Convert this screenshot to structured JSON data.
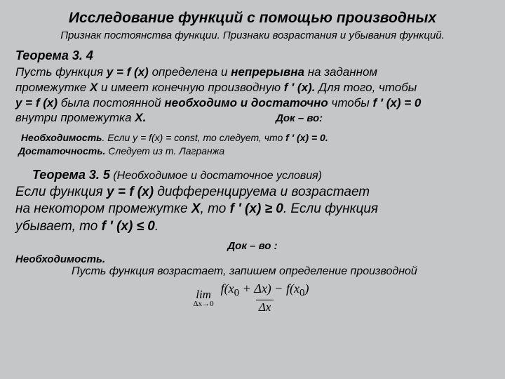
{
  "title": "Исследование функций с помощью производных",
  "subtitle": "Признак постоянства функции. Признаки возрастания и убывания функций.",
  "theorem34": {
    "label": "Теорема 3. 4",
    "line1a": "Пусть функция ",
    "line1b": "y = f (x)",
    "line1c": " определена и ",
    "line1d": "непрерывна",
    "line1e": " на заданном",
    "line2a": "промежутке ",
    "line2b": "X",
    "line2c": " и имеет конечную производную ",
    "line2d": "f ′ (x).",
    "line2e": " Для того, чтобы",
    "line3a": "y = f (x)",
    "line3b": " была постоянной ",
    "line3c": "необходимо и достаточно",
    "line3d": " чтобы ",
    "line3e": "f ′ (x) = 0",
    "line4a": "внутри промежутка ",
    "line4b": "X.",
    "proof_label": "Док – во:",
    "proof1a": "Необходимость",
    "proof1b": ". Если y = f(x) = const, то следует, что ",
    "proof1c": "f ′ (x) = 0.",
    "proof2a": "Достаточность.",
    "proof2b": " Следует из т. Лагранжа"
  },
  "theorem35": {
    "label": "Теорема 3. 5",
    "paren": " (Необходимое и достаточное условия)",
    "body1a": "Если функция ",
    "body1b": "y = f (x)",
    "body1c": " дифференцируема и возрастает",
    "body2a": "на некотором промежутке ",
    "body2b": "X",
    "body2c": ", то ",
    "body2d": "f ′ (x) ≥  0",
    "body2e": ".  Если функция",
    "body3a": "убывает, то ",
    "body3b": "f ′ (x) ≤  0",
    "body3c": ".",
    "proof_label": "Док – во :",
    "nec": "Необходимость.",
    "nec_text": "Пусть функция возрастает, запишем определение производной"
  },
  "formula": {
    "lim": "lim",
    "limsub": "Δx→0",
    "num_a": "f(x",
    "num_b": " + Δx) − f(x",
    "num_c": ")",
    "sub0": "0",
    "den": "Δx"
  }
}
